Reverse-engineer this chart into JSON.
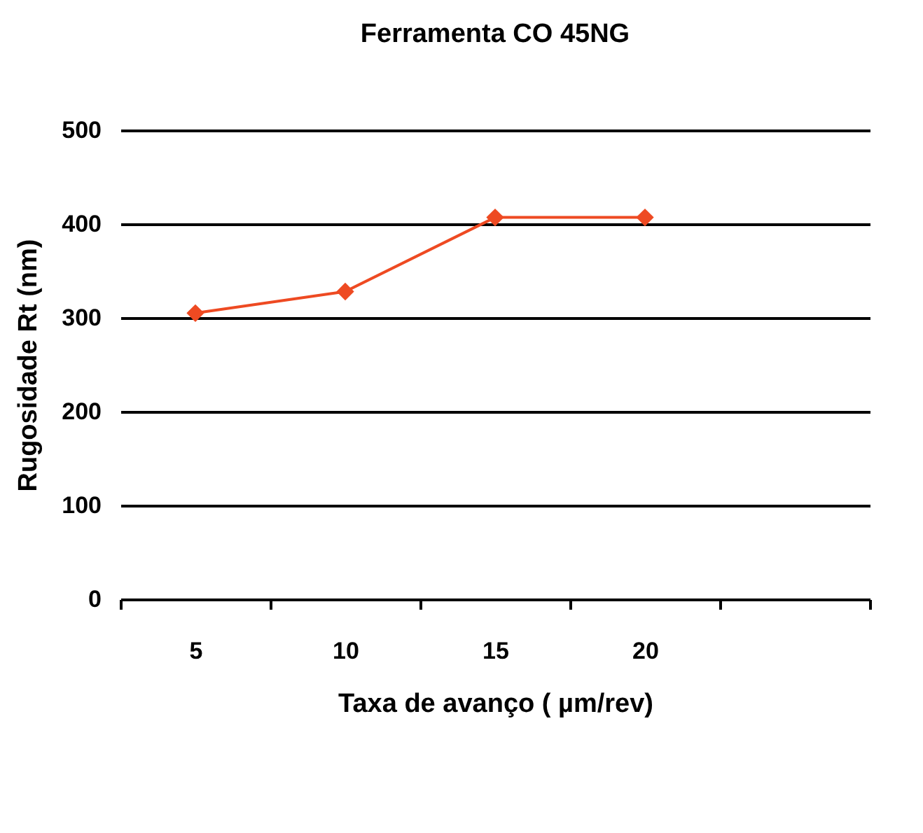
{
  "chart_data": {
    "type": "line",
    "title": "Ferramenta CO 45NG",
    "xlabel": "Taxa de avanço ( µm/rev)",
    "ylabel": "Rugosidade Rt (nm)",
    "categories": [
      "5",
      "10",
      "15",
      "20",
      null
    ],
    "series": [
      {
        "color": "#ee4a22",
        "values": [
          305,
          328,
          407,
          407,
          null
        ]
      }
    ],
    "ylim": [
      0,
      500
    ],
    "yticks": [
      0,
      100,
      200,
      300,
      400,
      500
    ],
    "grid": "y",
    "marker": "diamond",
    "line_style": "solid"
  }
}
